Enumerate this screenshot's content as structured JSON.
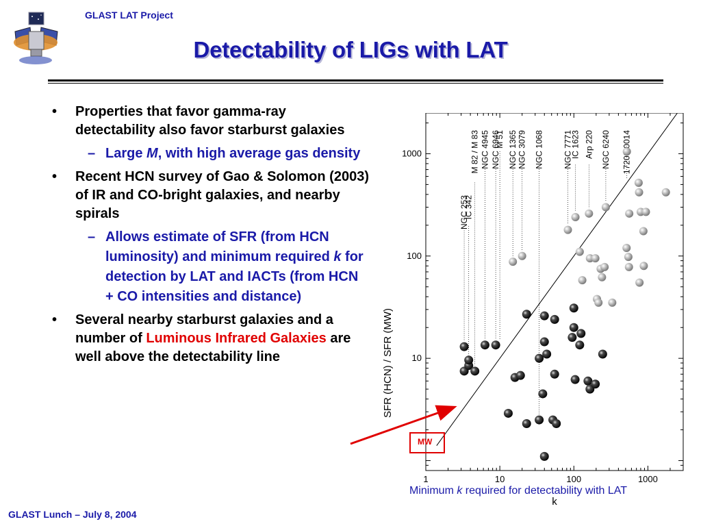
{
  "header": {
    "project": "GLAST LAT Project"
  },
  "slide": {
    "title": "Detectability of LIGs with LAT"
  },
  "bullets": {
    "b1": "Properties that favor gamma-ray detectability also favor starburst galaxies",
    "s1_pre": "Large ",
    "s1_it": "M",
    "s1_post": ", with high average gas density",
    "b2": "Recent HCN survey of Gao & Solomon (2003) of IR and CO-bright galaxies, and nearby spirals",
    "s2_pre": "Allows estimate of SFR (from HCN luminosity) and minimum required ",
    "s2_it": "k",
    "s2_post": " for detection by LAT and IACTs (from HCN + CO intensities and distance)",
    "b3_pre": "Several nearby starburst galaxies and a number of ",
    "b3_red": "Luminous Infrared Galaxies",
    "b3_post": " are well above the detectability line"
  },
  "footer": {
    "text": "GLAST Lunch – July 8, 2004"
  },
  "caption": {
    "pre": "Minimum ",
    "it": "k",
    "post": " required for detectability with LAT"
  },
  "mw_label": "MW",
  "chart_data": {
    "type": "scatter",
    "xscale": "log",
    "yscale": "log",
    "xlim": [
      1,
      3000
    ],
    "ylim": [
      0.8,
      2500
    ],
    "xlabel": "k",
    "ylabel": "SFR (HCN) / SFR (MW)",
    "xticks": [
      1,
      10,
      100,
      1000
    ],
    "xtick_labels": [
      "1",
      "10",
      "100",
      "1000"
    ],
    "yticks": [
      10,
      100,
      1000
    ],
    "ytick_labels": [
      "10",
      "100",
      "1000"
    ],
    "detectability_line": [
      [
        1.4,
        1.4
      ],
      [
        3000,
        3000
      ]
    ],
    "series": [
      {
        "marker": "dark",
        "points": [
          [
            3.3,
            13
          ],
          [
            3.3,
            7.5
          ],
          [
            3.8,
            8.5
          ],
          [
            3.8,
            9.6
          ],
          [
            4.6,
            7.5
          ],
          [
            6.3,
            13.5
          ],
          [
            8.8,
            13.5
          ],
          [
            13,
            2.9
          ],
          [
            16,
            6.5
          ],
          [
            19,
            6.8
          ],
          [
            23,
            27
          ],
          [
            23,
            2.3
          ],
          [
            34,
            2.5
          ],
          [
            34,
            10
          ],
          [
            40,
            26
          ],
          [
            38,
            4.5
          ],
          [
            40,
            14.5
          ],
          [
            40,
            1.1
          ],
          [
            43,
            11
          ],
          [
            52,
            2.5
          ],
          [
            55,
            24
          ],
          [
            55,
            7
          ],
          [
            58,
            2.3
          ],
          [
            95,
            16
          ],
          [
            100,
            31
          ],
          [
            100,
            20
          ],
          [
            104,
            6.2
          ],
          [
            120,
            13.5
          ],
          [
            125,
            17.5
          ],
          [
            155,
            6
          ],
          [
            165,
            5
          ],
          [
            195,
            5.6
          ],
          [
            245,
            11
          ]
        ]
      },
      {
        "marker": "gray",
        "points": [
          [
            15,
            88
          ],
          [
            20,
            100
          ],
          [
            83,
            180
          ],
          [
            105,
            240
          ],
          [
            120,
            110
          ],
          [
            130,
            58
          ],
          [
            160,
            260
          ],
          [
            165,
            95
          ],
          [
            195,
            95
          ],
          [
            205,
            38
          ],
          [
            215,
            35
          ],
          [
            230,
            75
          ],
          [
            240,
            62
          ],
          [
            260,
            78
          ],
          [
            270,
            300
          ],
          [
            330,
            35
          ],
          [
            520,
            1050
          ],
          [
            515,
            120
          ],
          [
            545,
            98
          ],
          [
            555,
            78
          ],
          [
            560,
            260
          ],
          [
            750,
            520
          ],
          [
            760,
            420
          ],
          [
            770,
            55
          ],
          [
            800,
            270
          ],
          [
            870,
            175
          ],
          [
            880,
            80
          ],
          [
            940,
            270
          ],
          [
            1750,
            420
          ]
        ]
      }
    ],
    "galaxy_labels": [
      {
        "name": "NGC 253",
        "x": 3.3
      },
      {
        "name": "IC 342",
        "x": 3.8
      },
      {
        "name": "M 82 / M 83",
        "x": 4.6
      },
      {
        "name": "NGC 4945",
        "x": 6.3
      },
      {
        "name": "NGC 6946",
        "x": 8.8
      },
      {
        "name": "M 51",
        "x": 10
      },
      {
        "name": "NGC 1365",
        "x": 15
      },
      {
        "name": "NGC 3079",
        "x": 20
      },
      {
        "name": "NGC 1068",
        "x": 34
      },
      {
        "name": "NGC 7771",
        "x": 83
      },
      {
        "name": "IC 1623",
        "x": 105
      },
      {
        "name": "Arp 220",
        "x": 160
      },
      {
        "name": "NGC 6240",
        "x": 270
      },
      {
        "name": "17208-0014",
        "x": 520
      }
    ]
  }
}
